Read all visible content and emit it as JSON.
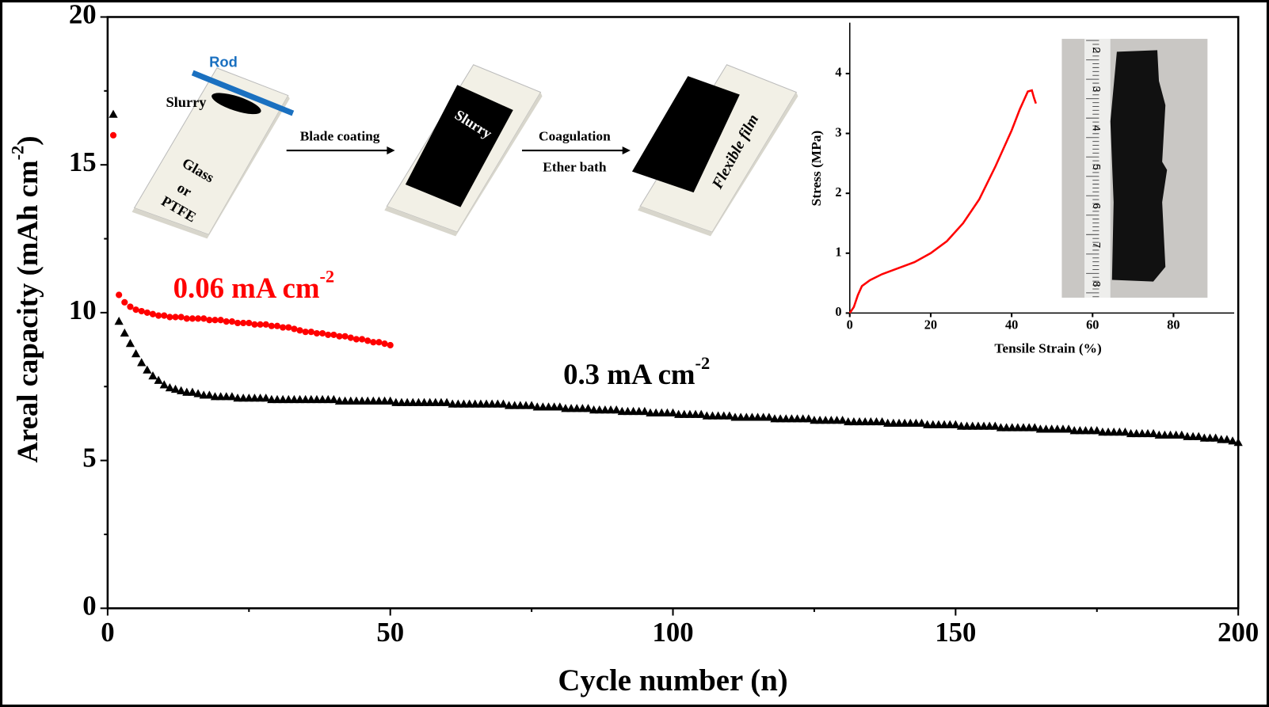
{
  "chart_data": [
    {
      "type": "scatter",
      "xlabel": "Cycle number (n)",
      "ylabel": "Areal capacity (mAh cm",
      "ylabel_superscript": "-2",
      "ylabel_end": ")",
      "xlim": [
        0,
        200
      ],
      "xticks": [
        0,
        50,
        100,
        150,
        200
      ],
      "xminorticks": [
        25,
        75,
        125,
        175
      ],
      "ylim": [
        0,
        20
      ],
      "yticks": [
        0,
        5,
        10,
        15,
        20
      ],
      "yminorticks": [
        2.5,
        7.5,
        12.5,
        17.5
      ],
      "x": [
        1,
        2,
        3,
        4,
        5,
        6,
        7,
        8,
        9,
        10,
        11,
        12,
        13,
        14,
        15,
        16,
        17,
        18,
        19,
        20,
        21,
        22,
        23,
        24,
        25,
        26,
        27,
        28,
        29,
        30,
        31,
        32,
        33,
        34,
        35,
        36,
        37,
        38,
        39,
        40,
        41,
        42,
        43,
        44,
        45,
        46,
        47,
        48,
        49,
        50,
        51,
        52,
        53,
        54,
        55,
        56,
        57,
        58,
        59,
        60,
        61,
        62,
        63,
        64,
        65,
        66,
        67,
        68,
        69,
        70,
        71,
        72,
        73,
        74,
        75,
        76,
        77,
        78,
        79,
        80,
        81,
        82,
        83,
        84,
        85,
        86,
        87,
        88,
        89,
        90,
        91,
        92,
        93,
        94,
        95,
        96,
        97,
        98,
        99,
        100,
        101,
        102,
        103,
        104,
        105,
        106,
        107,
        108,
        109,
        110,
        111,
        112,
        113,
        114,
        115,
        116,
        117,
        118,
        119,
        120,
        121,
        122,
        123,
        124,
        125,
        126,
        127,
        128,
        129,
        130,
        131,
        132,
        133,
        134,
        135,
        136,
        137,
        138,
        139,
        140,
        141,
        142,
        143,
        144,
        145,
        146,
        147,
        148,
        149,
        150,
        151,
        152,
        153,
        154,
        155,
        156,
        157,
        158,
        159,
        160,
        161,
        162,
        163,
        164,
        165,
        166,
        167,
        168,
        169,
        170,
        171,
        172,
        173,
        174,
        175,
        176,
        177,
        178,
        179,
        180,
        181,
        182,
        183,
        184,
        185,
        186,
        187,
        188,
        189,
        190,
        191,
        192,
        193,
        194,
        195,
        196,
        197,
        198,
        199,
        200
      ],
      "series": [
        {
          "marker": "triangle",
          "color": "#000000",
          "values": [
            16.7,
            9.7,
            9.3,
            8.95,
            8.6,
            8.3,
            8.05,
            7.85,
            7.7,
            7.55,
            7.45,
            7.4,
            7.35,
            7.3,
            7.3,
            7.25,
            7.2,
            7.2,
            7.15,
            7.15,
            7.15,
            7.15,
            7.1,
            7.1,
            7.1,
            7.1,
            7.1,
            7.1,
            7.05,
            7.05,
            7.05,
            7.05,
            7.05,
            7.05,
            7.05,
            7.05,
            7.05,
            7.05,
            7.05,
            7.05,
            7.0,
            7.0,
            7.0,
            7.0,
            7.0,
            7.0,
            7.0,
            7.0,
            7.0,
            7.0,
            6.95,
            6.95,
            6.95,
            6.95,
            6.95,
            6.95,
            6.95,
            6.95,
            6.95,
            6.95,
            6.9,
            6.9,
            6.9,
            6.9,
            6.9,
            6.9,
            6.9,
            6.9,
            6.9,
            6.9,
            6.85,
            6.85,
            6.85,
            6.85,
            6.85,
            6.8,
            6.8,
            6.8,
            6.8,
            6.8,
            6.75,
            6.75,
            6.75,
            6.75,
            6.75,
            6.7,
            6.7,
            6.7,
            6.7,
            6.7,
            6.65,
            6.65,
            6.65,
            6.65,
            6.65,
            6.6,
            6.6,
            6.6,
            6.6,
            6.6,
            6.55,
            6.55,
            6.55,
            6.55,
            6.55,
            6.5,
            6.5,
            6.5,
            6.5,
            6.5,
            6.45,
            6.45,
            6.45,
            6.45,
            6.45,
            6.45,
            6.45,
            6.4,
            6.4,
            6.4,
            6.4,
            6.4,
            6.4,
            6.4,
            6.35,
            6.35,
            6.35,
            6.35,
            6.35,
            6.35,
            6.3,
            6.3,
            6.3,
            6.3,
            6.3,
            6.3,
            6.3,
            6.25,
            6.25,
            6.25,
            6.25,
            6.25,
            6.25,
            6.25,
            6.2,
            6.2,
            6.2,
            6.2,
            6.2,
            6.2,
            6.15,
            6.15,
            6.15,
            6.15,
            6.15,
            6.15,
            6.15,
            6.1,
            6.1,
            6.1,
            6.1,
            6.1,
            6.1,
            6.1,
            6.05,
            6.05,
            6.05,
            6.05,
            6.05,
            6.05,
            6.0,
            6.0,
            6.0,
            6.0,
            6.0,
            5.95,
            5.95,
            5.95,
            5.95,
            5.95,
            5.9,
            5.9,
            5.9,
            5.9,
            5.9,
            5.85,
            5.85,
            5.85,
            5.85,
            5.85,
            5.8,
            5.8,
            5.8,
            5.75,
            5.75,
            5.75,
            5.7,
            5.7,
            5.65,
            5.6
          ]
        },
        {
          "marker": "circle",
          "color": "#ff0000",
          "values": [
            16.0,
            10.6,
            10.35,
            10.2,
            10.1,
            10.05,
            10.0,
            9.95,
            9.9,
            9.9,
            9.85,
            9.85,
            9.85,
            9.8,
            9.8,
            9.8,
            9.8,
            9.75,
            9.75,
            9.75,
            9.7,
            9.7,
            9.65,
            9.65,
            9.65,
            9.6,
            9.6,
            9.6,
            9.55,
            9.55,
            9.5,
            9.5,
            9.45,
            9.4,
            9.35,
            9.35,
            9.3,
            9.3,
            9.25,
            9.25,
            9.2,
            9.2,
            9.15,
            9.1,
            9.1,
            9.05,
            9.0,
            9.0,
            8.95,
            8.9,
            null,
            null,
            null,
            null,
            null,
            null,
            null,
            null,
            null,
            null,
            null,
            null,
            null,
            null,
            null,
            null,
            null,
            null,
            null,
            null,
            null,
            null,
            null,
            null,
            null,
            null,
            null,
            null,
            null,
            null,
            null,
            null,
            null,
            null,
            null,
            null,
            null,
            null,
            null,
            null,
            null,
            null,
            null,
            null,
            null,
            null,
            null,
            null,
            null,
            null,
            null,
            null,
            null,
            null,
            null,
            null,
            null,
            null,
            null,
            null,
            null,
            null,
            null,
            null,
            null,
            null,
            null,
            null,
            null,
            null,
            null,
            null,
            null,
            null,
            null,
            null,
            null,
            null,
            null,
            null,
            null,
            null,
            null,
            null,
            null,
            null,
            null,
            null,
            null,
            null,
            null,
            null,
            null,
            null,
            null,
            null,
            null,
            null,
            null,
            null,
            null,
            null,
            null,
            null,
            null,
            null,
            null,
            null,
            null,
            null,
            null,
            null,
            null,
            null,
            null,
            null,
            null,
            null,
            null,
            null,
            null,
            null,
            null,
            null,
            null,
            null,
            null,
            null,
            null,
            null,
            null,
            null,
            null,
            null,
            null,
            null,
            null,
            null,
            null,
            null,
            null,
            null,
            null,
            null,
            null,
            null,
            null,
            null,
            null,
            null
          ]
        }
      ],
      "annotations": [
        {
          "text": "0.06 mA cm",
          "superscript": "-2",
          "color": "#ff0000"
        },
        {
          "text": "0.3 mA cm",
          "superscript": "-2",
          "color": "#000000"
        }
      ]
    },
    {
      "type": "line",
      "xlabel": "Tensile Strain (%)",
      "ylabel": "Stress (MPa)",
      "xlim": [
        0,
        95
      ],
      "xticks": [
        0,
        20,
        40,
        60,
        80
      ],
      "ylim": [
        0,
        4.85
      ],
      "yticks": [
        0,
        1,
        2,
        3,
        4
      ],
      "x": [
        0,
        1,
        2,
        3,
        5,
        8,
        12,
        16,
        20,
        24,
        28,
        32,
        36,
        40,
        42,
        44,
        45,
        45.5,
        46
      ],
      "series": [
        {
          "color": "#ff0000",
          "values": [
            0,
            0.1,
            0.3,
            0.45,
            0.55,
            0.65,
            0.75,
            0.85,
            1.0,
            1.2,
            1.5,
            1.9,
            2.45,
            3.05,
            3.4,
            3.7,
            3.72,
            3.6,
            3.5
          ]
        }
      ]
    }
  ],
  "diagram": {
    "rod": "Rod",
    "slurry": "Slurry",
    "substrate": [
      "Glass",
      "or",
      "PTFE"
    ],
    "step1": "Blade coating",
    "coated": "Slurry",
    "step2_top": "Coagulation",
    "step2_bottom": "Ether bath",
    "film": "Flexible film",
    "ruler_labels": [
      "2",
      "3",
      "4",
      "5",
      "6",
      "7",
      "8"
    ]
  }
}
